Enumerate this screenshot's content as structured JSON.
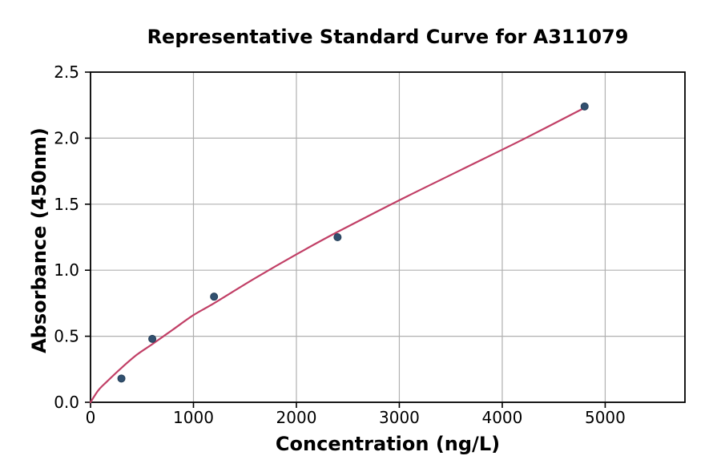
{
  "figure": {
    "background": "#ffffff"
  },
  "chart_data": {
    "type": "scatter",
    "title": "Representative Standard Curve for A311079",
    "xlabel": "Concentration (ng/L)",
    "ylabel": "Absorbance (450nm)",
    "xlim": [
      0,
      5775
    ],
    "ylim": [
      0,
      2.5
    ],
    "xticks": [
      0,
      1000,
      2000,
      3000,
      4000,
      5000
    ],
    "xtick_labels": [
      "0",
      "1000",
      "2000",
      "3000",
      "4000",
      "5000"
    ],
    "yticks": [
      0,
      0.5,
      1.0,
      1.5,
      2.0,
      2.5
    ],
    "ytick_labels": [
      "0.0",
      "0.5",
      "1.0",
      "1.5",
      "2.0",
      "2.5"
    ],
    "grid": true,
    "legend": "none",
    "colors": {
      "grid": "#b0b0b0",
      "axis": "#000000",
      "point_fill": "#31506f",
      "point_edge": "#263f58",
      "curve": "#c13f66"
    },
    "points": {
      "name": "standard-points",
      "x": [
        300,
        600,
        1200,
        2400,
        4800
      ],
      "y": [
        0.18,
        0.48,
        0.8,
        1.25,
        2.24
      ]
    },
    "fit_curve": {
      "name": "power-fit-curve",
      "x": [
        0,
        75,
        150,
        300,
        450,
        600,
        800,
        1000,
        1200,
        1600,
        2000,
        2400,
        3000,
        3600,
        4200,
        4800
      ],
      "y": [
        0,
        0.09,
        0.15,
        0.26,
        0.36,
        0.44,
        0.55,
        0.66,
        0.75,
        0.94,
        1.12,
        1.29,
        1.53,
        1.76,
        1.99,
        2.23
      ]
    }
  }
}
